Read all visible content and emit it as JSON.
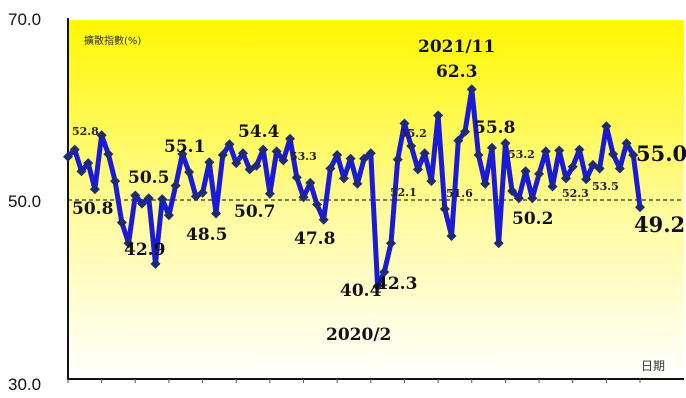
{
  "chart_data": {
    "type": "line",
    "ylabel": "擴散指數(%)",
    "xlabel": "日期",
    "ylim": [
      30,
      70
    ],
    "yticks": [
      "70.0",
      "50.0",
      "30.0"
    ],
    "reference_line": 50,
    "grid": false,
    "series": [
      {
        "values": [
          54.8,
          55.6,
          53.2,
          54.1,
          51.2,
          57.2,
          55.1,
          52.1,
          47.5,
          45.2,
          50.5,
          49.6,
          50.2,
          42.9,
          50.1,
          48.3,
          51.6,
          55.1,
          53.1,
          50.4,
          50.8,
          54.2,
          48.5,
          55.0,
          56.2,
          54.1,
          55.2,
          53.4,
          53.8,
          55.6,
          50.7,
          55.4,
          54.4,
          56.8,
          52.5,
          50.3,
          51.9,
          49.5,
          47.8,
          53.5,
          55.0,
          52.4,
          54.6,
          51.8,
          54.6,
          55.2,
          40.4,
          42.0,
          45.2,
          54.5,
          58.5,
          56.0,
          53.4,
          55.2,
          52.1,
          59.4,
          49.0,
          46.0,
          56.6,
          57.6,
          62.3,
          55.0,
          51.8,
          55.8,
          45.2,
          56.3,
          51.0,
          50.2,
          53.2,
          50.2,
          52.9,
          55.4,
          51.5,
          55.5,
          52.4,
          53.7,
          55.6,
          52.3,
          53.9,
          53.5,
          58.2,
          55.1,
          53.5,
          56.3,
          55.0,
          49.2
        ]
      }
    ],
    "annotations": [
      {
        "text": "52.8",
        "size": "small"
      },
      {
        "text": "50.8",
        "size": "large"
      },
      {
        "text": "50.5",
        "size": "large"
      },
      {
        "text": "42.9",
        "size": "large"
      },
      {
        "text": "55.1",
        "size": "large"
      },
      {
        "text": "48.5",
        "size": "large"
      },
      {
        "text": "54.4",
        "size": "large"
      },
      {
        "text": "50.7",
        "size": "large"
      },
      {
        "text": "53.3",
        "size": "small"
      },
      {
        "text": "47.8",
        "size": "large"
      },
      {
        "text": "40.4",
        "size": "large"
      },
      {
        "text": "42.3",
        "size": "large"
      },
      {
        "text": "2020/2",
        "size": "large"
      },
      {
        "text": "52.1",
        "size": "small"
      },
      {
        "text": "55.2",
        "size": "small"
      },
      {
        "text": "2021/11",
        "size": "large"
      },
      {
        "text": "62.3",
        "size": "large"
      },
      {
        "text": "51.6",
        "size": "small"
      },
      {
        "text": "55.8",
        "size": "large"
      },
      {
        "text": "53.2",
        "size": "small"
      },
      {
        "text": "50.2",
        "size": "large"
      },
      {
        "text": "52.3",
        "size": "small"
      },
      {
        "text": "53.5",
        "size": "small"
      },
      {
        "text": "55.0",
        "size": "xlarge"
      },
      {
        "text": "49.2",
        "size": "xlarge"
      }
    ]
  },
  "colors": {
    "line": "#1a1ad8",
    "marker": "#1e2a78",
    "bg_top": "#fff700",
    "bg_bottom": "#ffffff",
    "axis": "#111111"
  }
}
